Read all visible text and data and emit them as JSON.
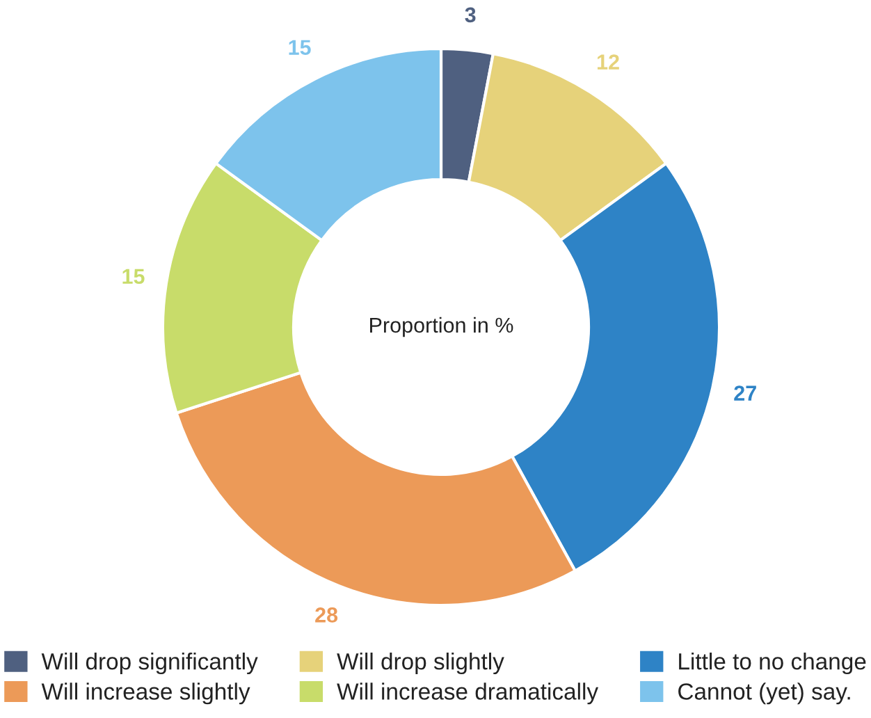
{
  "chart_data": {
    "type": "donut",
    "categories": [
      "Will drop significantly",
      "Will drop slightly",
      "Little to no change",
      "Will increase slightly",
      "Will increase dramatically",
      "Cannot (yet) say."
    ],
    "values": [
      3,
      12,
      27,
      28,
      15,
      15
    ],
    "colors": [
      "#4f6080",
      "#e6d27a",
      "#2e83c6",
      "#ec9a58",
      "#c8dc6a",
      "#7dc3ec"
    ],
    "data_labels": true,
    "legend": "bottom",
    "annotations": [
      "Proportion in %"
    ]
  }
}
